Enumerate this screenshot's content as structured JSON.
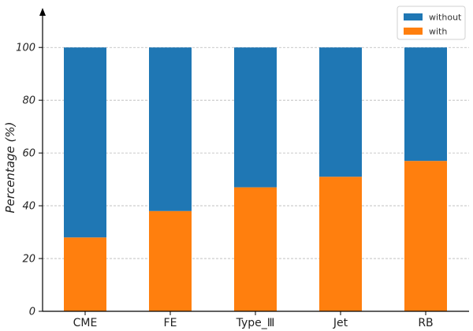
{
  "chart_data": {
    "type": "bar",
    "stacked": true,
    "categories": [
      "CME",
      "FE",
      "Type_Ⅲ",
      "Jet",
      "RB"
    ],
    "series": [
      {
        "name": "with",
        "values": [
          28,
          38,
          47,
          51,
          57
        ],
        "color": "#ff7f0e"
      },
      {
        "name": "without",
        "values": [
          72,
          62,
          53,
          49,
          43
        ],
        "color": "#1f77b4"
      }
    ],
    "ylabel": "Percentage (%)",
    "xlabel": "",
    "ylim": [
      0,
      115
    ],
    "yticks": [
      0,
      20,
      40,
      60,
      80,
      100
    ],
    "grid": true,
    "legend": {
      "placement": "top-right",
      "entries": [
        "without",
        "with"
      ]
    }
  }
}
